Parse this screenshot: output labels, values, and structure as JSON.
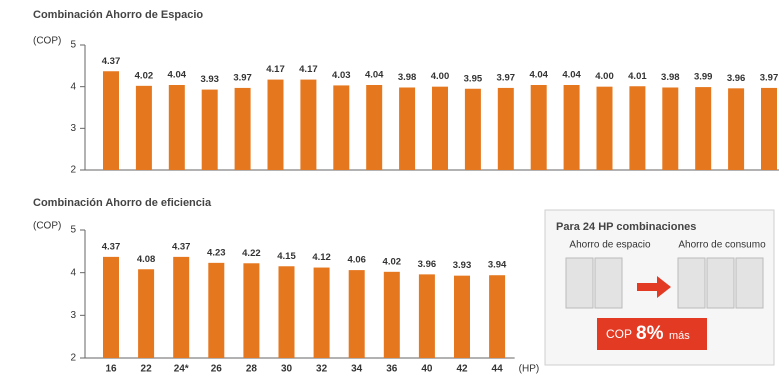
{
  "chart_data": [
    {
      "type": "bar",
      "title": "Combinación Ahorro de Espacio",
      "y_label": "(COP)",
      "categories": [
        null,
        null,
        null,
        null,
        null,
        null,
        null,
        null,
        null,
        null,
        null,
        null,
        null,
        null,
        null,
        null,
        null,
        null,
        null,
        null,
        null
      ],
      "values": [
        4.37,
        4.02,
        4.04,
        3.93,
        3.97,
        4.17,
        4.17,
        4.03,
        4.04,
        3.98,
        4.0,
        3.95,
        3.97,
        4.04,
        4.04,
        4.0,
        4.01,
        3.98,
        3.99,
        3.96,
        3.97
      ],
      "value_labels": [
        "4.37",
        "4.02",
        "4.04",
        "3.93",
        "3.97",
        "4.17",
        "4.17",
        "4.03",
        "4.04",
        "3.98",
        "4.00",
        "3.95",
        "3.97",
        "4.04",
        "4.04",
        "4.00",
        "4.01",
        "3.98",
        "3.99",
        "3.96",
        "3.97"
      ],
      "color": "#e5771e",
      "ylim": [
        2,
        5
      ],
      "yticks": [
        2,
        3,
        4,
        5
      ],
      "grid": false
    },
    {
      "type": "bar",
      "title": "Combinación Ahorro de eficiencia",
      "y_label": "(COP)",
      "x_label": "(HP)",
      "categories": [
        "16",
        "22",
        "24*",
        "26",
        "28",
        "30",
        "32",
        "34",
        "36",
        "40",
        "42",
        "44"
      ],
      "values": [
        4.37,
        4.08,
        4.37,
        4.23,
        4.22,
        4.15,
        4.12,
        4.06,
        4.02,
        3.96,
        3.93,
        3.94
      ],
      "color": "#e5771e",
      "ylim": [
        2,
        5
      ],
      "yticks": [
        2,
        3,
        4,
        5
      ],
      "grid": false
    }
  ],
  "panel": {
    "title": "Para 24 HP combinaciones",
    "left_label": "Ahorro de espacio",
    "right_label": "Ahorro de consumo",
    "badge": {
      "prefix": "COP",
      "value": "8%",
      "suffix": "más"
    }
  }
}
